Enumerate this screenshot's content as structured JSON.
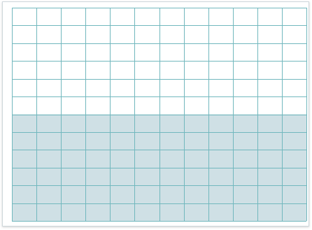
{
  "grid": {
    "columns": 12,
    "rows": 12,
    "shaded_rows": 6,
    "line_color": "#72b8be",
    "shade_color": "#cfe0e5",
    "background_color": "#ffffff"
  }
}
